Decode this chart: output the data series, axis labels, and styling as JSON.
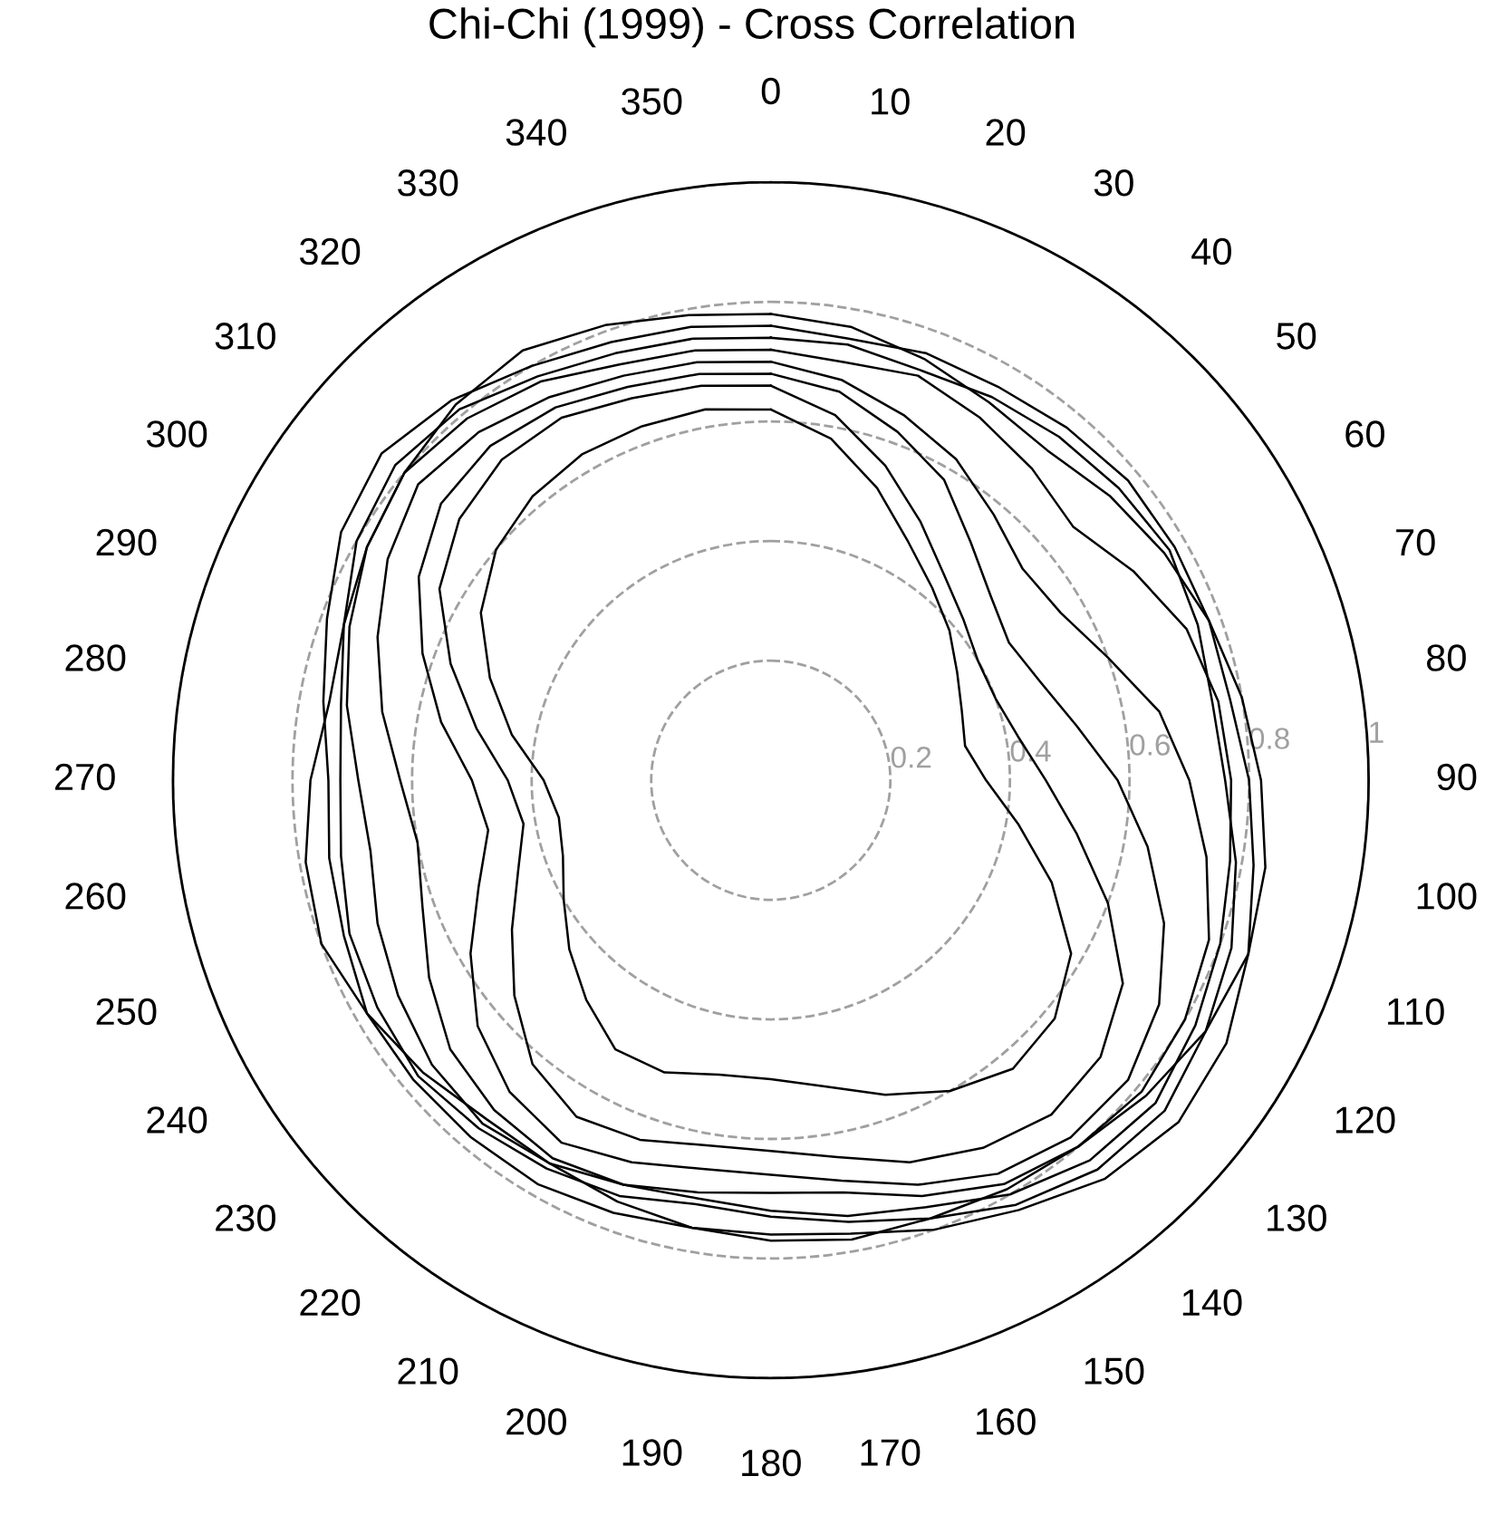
{
  "chart_data": {
    "type": "radar",
    "title": "Chi-Chi (1999) - Cross Correlation",
    "categories": [
      "0",
      "10",
      "20",
      "30",
      "40",
      "50",
      "60",
      "70",
      "80",
      "90",
      "100",
      "110",
      "120",
      "130",
      "140",
      "150",
      "160",
      "170",
      "180",
      "190",
      "200",
      "210",
      "220",
      "230",
      "240",
      "250",
      "260",
      "270",
      "280",
      "290",
      "300",
      "310",
      "320",
      "330",
      "340",
      "350"
    ],
    "ylim": [
      0,
      1
    ],
    "yticks": [
      0.2,
      0.4,
      0.6,
      0.8,
      1
    ],
    "grid": true,
    "line_style": "solid",
    "marker": "none",
    "series": [
      {
        "color": "#000000",
        "values": [
          0.76,
          0.75,
          0.76,
          0.76,
          0.77,
          0.78,
          0.78,
          0.78,
          0.78,
          0.8,
          0.82,
          0.85,
          0.88,
          0.89,
          0.87,
          0.83,
          0.8,
          0.77,
          0.76,
          0.76,
          0.77,
          0.78,
          0.78,
          0.78,
          0.78,
          0.76,
          0.75,
          0.74,
          0.76,
          0.79,
          0.83,
          0.85,
          0.83,
          0.8,
          0.78,
          0.77
        ]
      },
      {
        "color": "#000000",
        "values": [
          0.74,
          0.74,
          0.73,
          0.74,
          0.75,
          0.76,
          0.77,
          0.76,
          0.75,
          0.76,
          0.79,
          0.82,
          0.84,
          0.86,
          0.85,
          0.82,
          0.78,
          0.75,
          0.73,
          0.72,
          0.74,
          0.75,
          0.76,
          0.77,
          0.76,
          0.75,
          0.73,
          0.72,
          0.73,
          0.76,
          0.8,
          0.82,
          0.81,
          0.78,
          0.76,
          0.75
        ]
      },
      {
        "color": "#000000",
        "values": [
          0.72,
          0.71,
          0.72,
          0.7,
          0.68,
          0.66,
          0.7,
          0.74,
          0.76,
          0.77,
          0.78,
          0.8,
          0.82,
          0.84,
          0.83,
          0.8,
          0.76,
          0.74,
          0.72,
          0.71,
          0.72,
          0.74,
          0.75,
          0.74,
          0.72,
          0.7,
          0.68,
          0.69,
          0.72,
          0.75,
          0.78,
          0.8,
          0.79,
          0.77,
          0.74,
          0.73
        ]
      },
      {
        "color": "#000000",
        "values": [
          0.7,
          0.68,
          0.65,
          0.62,
          0.58,
          0.55,
          0.56,
          0.6,
          0.66,
          0.7,
          0.74,
          0.78,
          0.8,
          0.81,
          0.8,
          0.78,
          0.74,
          0.7,
          0.69,
          0.7,
          0.72,
          0.73,
          0.72,
          0.7,
          0.66,
          0.62,
          0.6,
          0.62,
          0.66,
          0.7,
          0.74,
          0.77,
          0.76,
          0.74,
          0.72,
          0.71
        ]
      },
      {
        "color": "#000000",
        "values": [
          0.68,
          0.66,
          0.62,
          0.58,
          0.52,
          0.48,
          0.46,
          0.48,
          0.52,
          0.58,
          0.64,
          0.7,
          0.75,
          0.78,
          0.78,
          0.76,
          0.72,
          0.68,
          0.66,
          0.66,
          0.68,
          0.7,
          0.68,
          0.64,
          0.58,
          0.52,
          0.48,
          0.5,
          0.56,
          0.62,
          0.68,
          0.72,
          0.73,
          0.72,
          0.7,
          0.69
        ]
      },
      {
        "color": "#000000",
        "values": [
          0.66,
          0.62,
          0.56,
          0.5,
          0.45,
          0.42,
          0.4,
          0.4,
          0.42,
          0.46,
          0.52,
          0.6,
          0.68,
          0.72,
          0.73,
          0.71,
          0.68,
          0.64,
          0.62,
          0.62,
          0.64,
          0.65,
          0.62,
          0.56,
          0.5,
          0.45,
          0.42,
          0.44,
          0.5,
          0.57,
          0.64,
          0.68,
          0.7,
          0.7,
          0.68,
          0.67
        ]
      },
      {
        "color": "#000000",
        "values": [
          0.62,
          0.58,
          0.52,
          0.46,
          0.42,
          0.39,
          0.36,
          0.34,
          0.33,
          0.36,
          0.42,
          0.5,
          0.58,
          0.62,
          0.63,
          0.6,
          0.56,
          0.52,
          0.5,
          0.5,
          0.52,
          0.52,
          0.48,
          0.44,
          0.4,
          0.37,
          0.36,
          0.38,
          0.44,
          0.5,
          0.56,
          0.6,
          0.62,
          0.63,
          0.63,
          0.63
        ]
      },
      {
        "color": "#000000",
        "values": [
          0.78,
          0.77,
          0.75,
          0.73,
          0.72,
          0.74,
          0.76,
          0.78,
          0.8,
          0.82,
          0.84,
          0.85,
          0.84,
          0.82,
          0.8,
          0.79,
          0.78,
          0.78,
          0.77,
          0.76,
          0.75,
          0.74,
          0.74,
          0.76,
          0.78,
          0.8,
          0.79,
          0.77,
          0.75,
          0.76,
          0.78,
          0.8,
          0.82,
          0.83,
          0.81,
          0.79
        ]
      }
    ]
  }
}
